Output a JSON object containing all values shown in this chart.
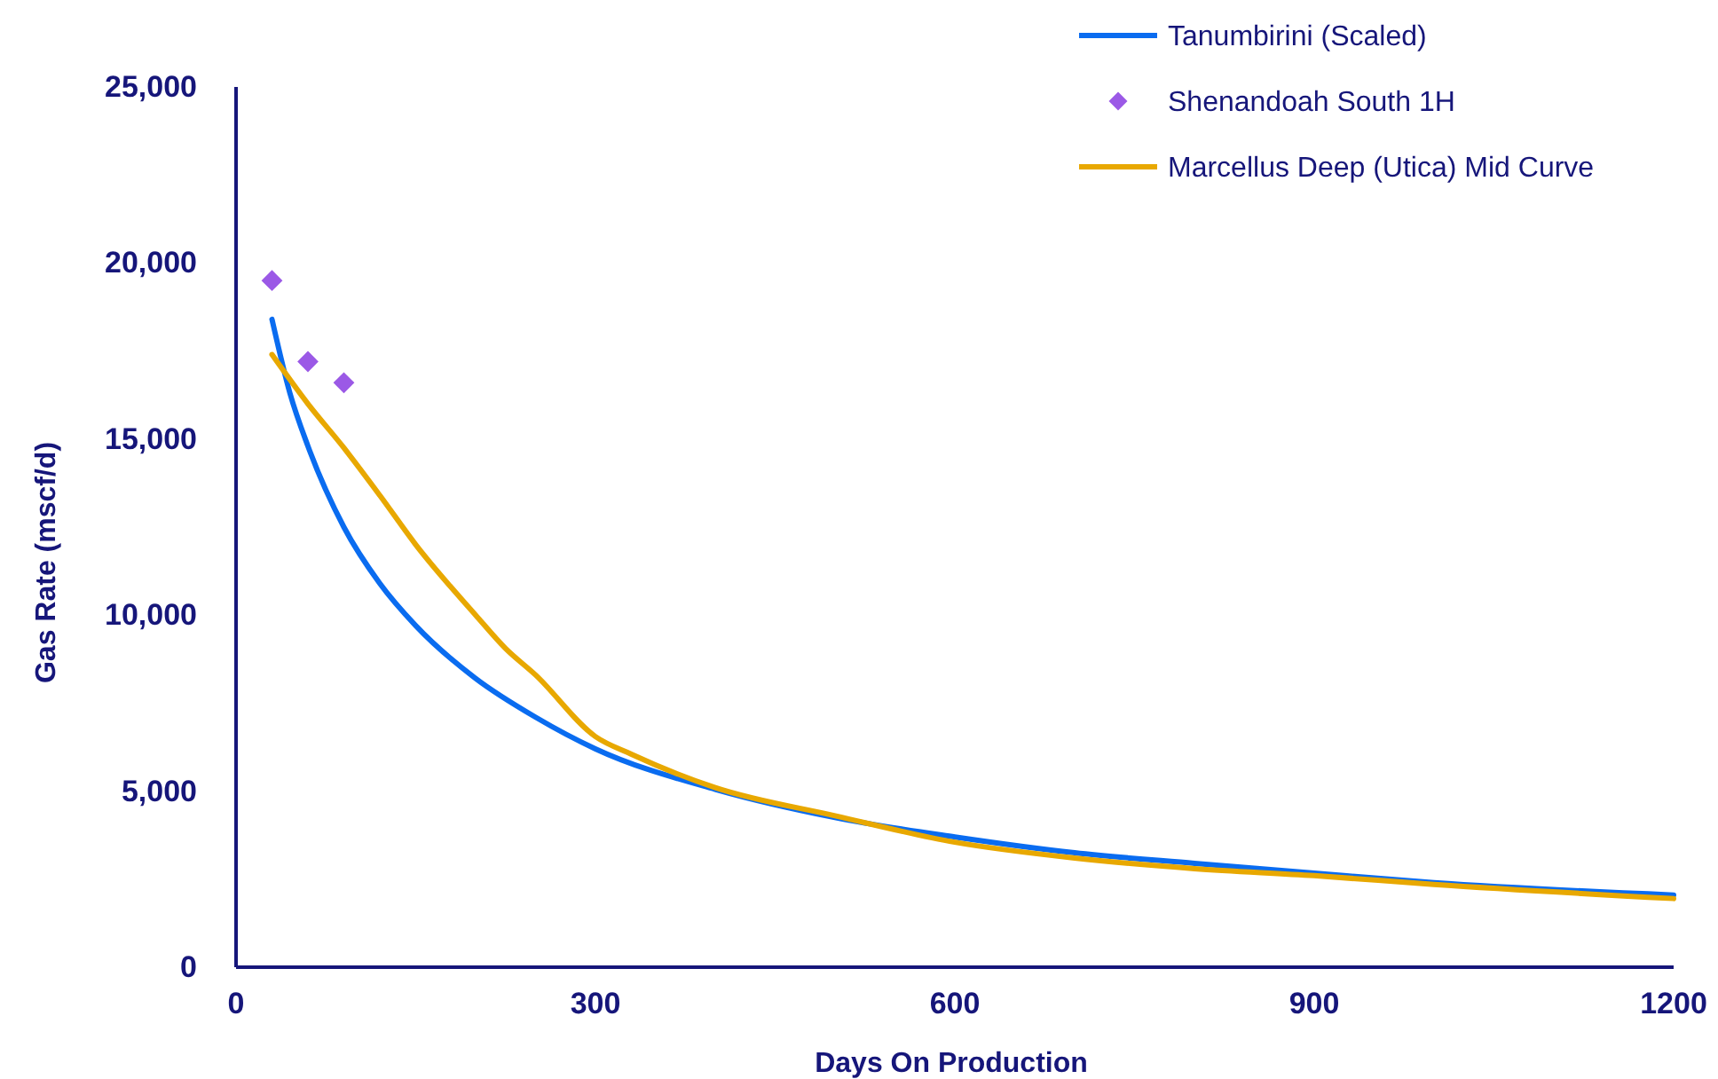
{
  "chart_data": {
    "type": "line",
    "xlabel": "Days On Production",
    "ylabel": "Gas Rate (mscf/d)",
    "xlim": [
      0,
      1200
    ],
    "xticks": [
      0,
      300,
      600,
      900,
      1200
    ],
    "ylim": [
      0,
      25000
    ],
    "yticks": [
      {
        "value": 0,
        "label": "0"
      },
      {
        "value": 5000,
        "label": "5,000"
      },
      {
        "value": 10000,
        "label": "10,000"
      },
      {
        "value": 15000,
        "label": "15,000"
      },
      {
        "value": 20000,
        "label": "20,000"
      },
      {
        "value": 25000,
        "label": "25,000"
      }
    ],
    "grid": false,
    "legend": "top right",
    "marker": "none",
    "line_style": "solid",
    "series": [
      {
        "name": "Tanumbirini (Scaled)",
        "color": "#0a6cf0",
        "x": [
          30,
          45,
          60,
          90,
          120,
          150,
          200,
          250,
          300,
          400,
          500,
          600,
          700,
          800,
          900,
          1000,
          1200
        ],
        "values": [
          18400,
          16300,
          14800,
          12500,
          10900,
          9700,
          8200,
          7100,
          6200,
          5050,
          4250,
          3700,
          3250,
          2950,
          2670,
          2400,
          2050
        ]
      },
      {
        "name": "Shenandoah South 1H",
        "type": "scatter",
        "marker": "diamond",
        "color": "#9b59e6",
        "x": [
          30,
          60,
          90
        ],
        "values": [
          19500,
          17200,
          16600
        ]
      },
      {
        "name": "Marcellus Deep (Utica) Mid Curve",
        "color": "#e8a800",
        "x": [
          30,
          60,
          90,
          120,
          150,
          200,
          225,
          250,
          300,
          330,
          400,
          500,
          600,
          700,
          800,
          900,
          1000,
          1200
        ],
        "values": [
          17400,
          16000,
          14750,
          13400,
          12000,
          10000,
          9050,
          8300,
          6550,
          6050,
          5100,
          4300,
          3550,
          3100,
          2800,
          2600,
          2350,
          1950
        ]
      }
    ]
  }
}
